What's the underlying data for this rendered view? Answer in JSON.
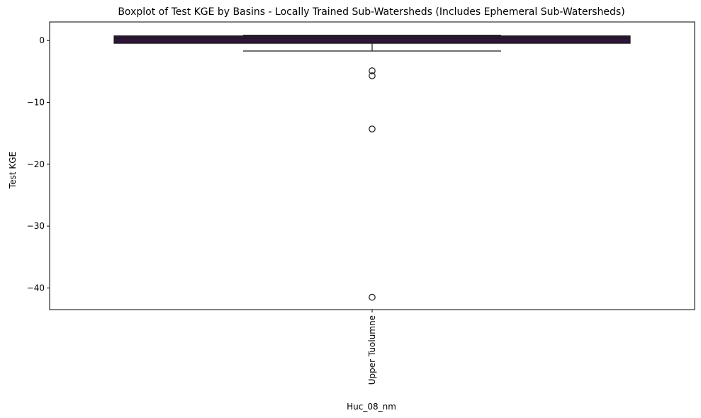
{
  "chart_data": {
    "type": "boxplot",
    "title": "Boxplot of Test KGE by Basins - Locally Trained Sub-Watersheds (Includes Ephemeral Sub-Watersheds)",
    "xlabel": "Huc_08_nm",
    "ylabel": "Test KGE",
    "categories": [
      "Upper Tuolumne"
    ],
    "ylim": [
      -43.5,
      3.0
    ],
    "yticks": [
      0,
      -10,
      -20,
      -30,
      -40
    ],
    "ytick_labels": [
      "0",
      "−10",
      "−20",
      "−30",
      "−40"
    ],
    "grid": false,
    "box_color": "#2e1539",
    "boxes": [
      {
        "category": "Upper Tuolumne",
        "whisker_low": -1.7,
        "q1": -0.45,
        "median": 0.35,
        "q3": 0.75,
        "whisker_high": 0.85,
        "outliers": [
          -4.9,
          -5.7,
          -14.3,
          -41.5
        ]
      }
    ]
  }
}
